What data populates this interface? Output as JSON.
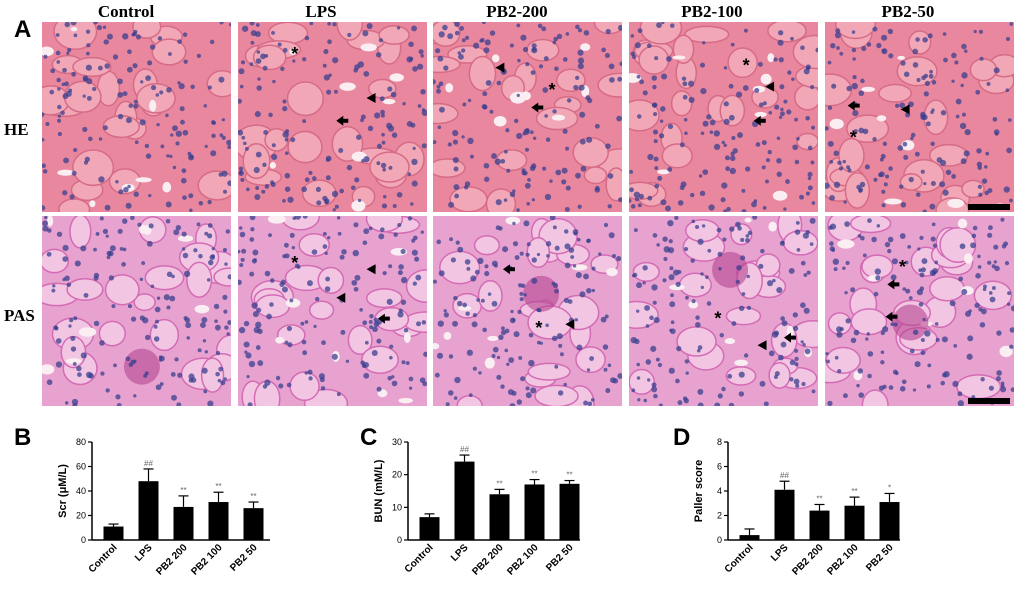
{
  "figure": {
    "panel_labels": [
      "A",
      "B",
      "C",
      "D"
    ],
    "columns": [
      "Control",
      "LPS",
      "PB2-200",
      "PB2-100",
      "PB2-50"
    ],
    "rows": [
      "HE",
      "PAS"
    ],
    "markers": {
      "asterisk": "*"
    }
  },
  "colors": {
    "bar": "#000000",
    "he_bg": "#e9879f",
    "pas_bg": "#e7a2cf",
    "nucleus": "#3a3f8f"
  },
  "chart_data": [
    {
      "type": "bar",
      "panel": "B",
      "ylabel": "Scr (μM/L)",
      "categories": [
        "Control",
        "LPS",
        "PB2 200",
        "PB2 100",
        "PB2 50"
      ],
      "values": [
        11,
        48,
        27,
        31,
        26
      ],
      "errors": [
        2,
        10,
        9,
        8,
        5
      ],
      "annotations": [
        "",
        "##",
        "**",
        "**",
        "**"
      ],
      "ylim": [
        0,
        80
      ],
      "yticks": [
        "0",
        "20",
        "40",
        "60",
        "80"
      ]
    },
    {
      "type": "bar",
      "panel": "C",
      "ylabel": "BUN (mM/L)",
      "categories": [
        "Control",
        "LPS",
        "PB2 200",
        "PB2 100",
        "PB2 50"
      ],
      "values": [
        7,
        24,
        14,
        17,
        17.2
      ],
      "errors": [
        1,
        2,
        1.5,
        1.5,
        1
      ],
      "annotations": [
        "",
        "##",
        "**",
        "**",
        "**"
      ],
      "ylim": [
        0,
        30
      ],
      "yticks": [
        "0",
        "10",
        "20",
        "30"
      ]
    },
    {
      "type": "bar",
      "panel": "D",
      "ylabel": "Paller score",
      "categories": [
        "Control",
        "LPS",
        "PB2 200",
        "PB2 100",
        "PB2 50"
      ],
      "values": [
        0.4,
        4.1,
        2.4,
        2.8,
        3.1
      ],
      "errors": [
        0.5,
        0.7,
        0.5,
        0.7,
        0.7
      ],
      "annotations": [
        "",
        "##",
        "**",
        "**",
        "*"
      ],
      "ylim": [
        0,
        8
      ],
      "yticks": [
        "0",
        "2",
        "4",
        "6",
        "8"
      ]
    }
  ]
}
